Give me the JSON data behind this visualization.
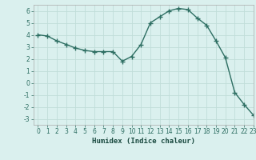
{
  "x": [
    0,
    1,
    2,
    3,
    4,
    5,
    6,
    7,
    8,
    9,
    10,
    11,
    12,
    13,
    14,
    15,
    16,
    17,
    18,
    19,
    20,
    21,
    22,
    23
  ],
  "y": [
    4.0,
    3.9,
    3.5,
    3.2,
    2.9,
    2.7,
    2.6,
    2.6,
    2.6,
    1.8,
    2.2,
    3.2,
    5.0,
    5.5,
    6.0,
    6.2,
    6.1,
    5.4,
    4.8,
    3.5,
    2.1,
    -0.8,
    -1.8,
    -2.7
  ],
  "line_color": "#2d6e62",
  "marker": "+",
  "marker_size": 4,
  "bg_color": "#daf0ee",
  "grid_color": "#c0ddd9",
  "xlabel": "Humidex (Indice chaleur)",
  "xlim": [
    -0.5,
    23
  ],
  "ylim": [
    -3.5,
    6.5
  ],
  "yticks": [
    -3,
    -2,
    -1,
    0,
    1,
    2,
    3,
    4,
    5,
    6
  ],
  "xticks": [
    0,
    1,
    2,
    3,
    4,
    5,
    6,
    7,
    8,
    9,
    10,
    11,
    12,
    13,
    14,
    15,
    16,
    17,
    18,
    19,
    20,
    21,
    22,
    23
  ],
  "tick_fontsize": 5.5,
  "xlabel_fontsize": 6.5,
  "line_width": 1.0
}
